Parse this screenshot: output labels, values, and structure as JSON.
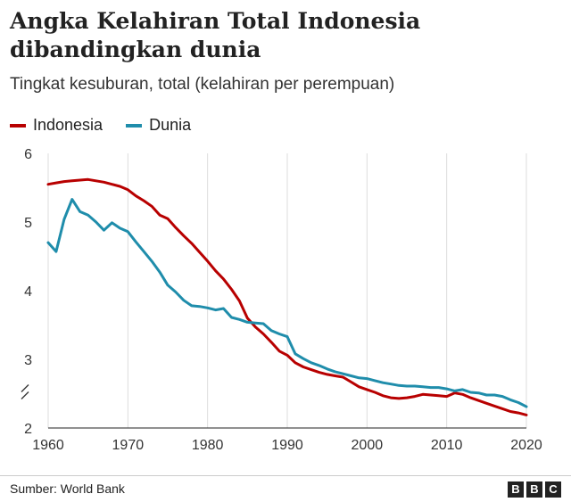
{
  "title": "Angka Kelahiran Total Indonesia dibandingkan dunia",
  "subtitle": "Tingkat kesuburan, total (kelahiran per perempuan)",
  "source": "Sumber: World Bank",
  "logo": [
    "B",
    "B",
    "C"
  ],
  "chart_data": {
    "type": "line",
    "title": "Angka Kelahiran Total Indonesia dibandingkan dunia",
    "subtitle": "Tingkat kesuburan, total (kelahiran per perempuan)",
    "xlabel": "",
    "ylabel": "",
    "xlim": [
      1960,
      2020
    ],
    "ylim": [
      2,
      6
    ],
    "axis_break": "y-axis between 2 and 3",
    "x_ticks": [
      "1960",
      "1970",
      "1980",
      "1990",
      "2000",
      "2010",
      "2020"
    ],
    "y_ticks": [
      "2",
      "3",
      "4",
      "5",
      "6"
    ],
    "grid": "vertical",
    "legend": "top-left",
    "x": [
      1960,
      1961,
      1962,
      1963,
      1964,
      1965,
      1966,
      1967,
      1968,
      1969,
      1970,
      1971,
      1972,
      1973,
      1974,
      1975,
      1976,
      1977,
      1978,
      1979,
      1980,
      1981,
      1982,
      1983,
      1984,
      1985,
      1986,
      1987,
      1988,
      1989,
      1990,
      1991,
      1992,
      1993,
      1994,
      1995,
      1996,
      1997,
      1998,
      1999,
      2000,
      2001,
      2002,
      2003,
      2004,
      2005,
      2006,
      2007,
      2008,
      2009,
      2010,
      2011,
      2012,
      2013,
      2014,
      2015,
      2016,
      2017,
      2018,
      2019,
      2020
    ],
    "series": [
      {
        "name": "Indonesia",
        "color": "#b80000",
        "values": [
          5.55,
          5.57,
          5.59,
          5.6,
          5.61,
          5.62,
          5.6,
          5.58,
          5.55,
          5.52,
          5.47,
          5.38,
          5.31,
          5.23,
          5.1,
          5.05,
          4.92,
          4.8,
          4.69,
          4.56,
          4.43,
          4.29,
          4.17,
          4.02,
          3.85,
          3.6,
          3.47,
          3.37,
          3.25,
          3.12,
          3.06,
          2.95,
          2.89,
          2.85,
          2.81,
          2.78,
          2.76,
          2.74,
          2.67,
          2.6,
          2.56,
          2.52,
          2.47,
          2.44,
          2.43,
          2.44,
          2.46,
          2.49,
          2.48,
          2.47,
          2.46,
          2.51,
          2.49,
          2.44,
          2.4,
          2.36,
          2.32,
          2.28,
          2.24,
          2.22,
          2.19
        ]
      },
      {
        "name": "Dunia",
        "color": "#1f8dab",
        "values": [
          4.7,
          4.57,
          5.04,
          5.33,
          5.15,
          5.1,
          5.0,
          4.88,
          4.99,
          4.91,
          4.86,
          4.71,
          4.57,
          4.43,
          4.27,
          4.08,
          3.98,
          3.86,
          3.78,
          3.77,
          3.75,
          3.72,
          3.74,
          3.61,
          3.58,
          3.54,
          3.53,
          3.52,
          3.42,
          3.37,
          3.33,
          3.08,
          3.01,
          2.95,
          2.91,
          2.86,
          2.82,
          2.79,
          2.76,
          2.73,
          2.72,
          2.69,
          2.66,
          2.64,
          2.62,
          2.61,
          2.61,
          2.6,
          2.59,
          2.59,
          2.57,
          2.54,
          2.56,
          2.52,
          2.51,
          2.48,
          2.48,
          2.46,
          2.41,
          2.37,
          2.31
        ]
      }
    ]
  }
}
